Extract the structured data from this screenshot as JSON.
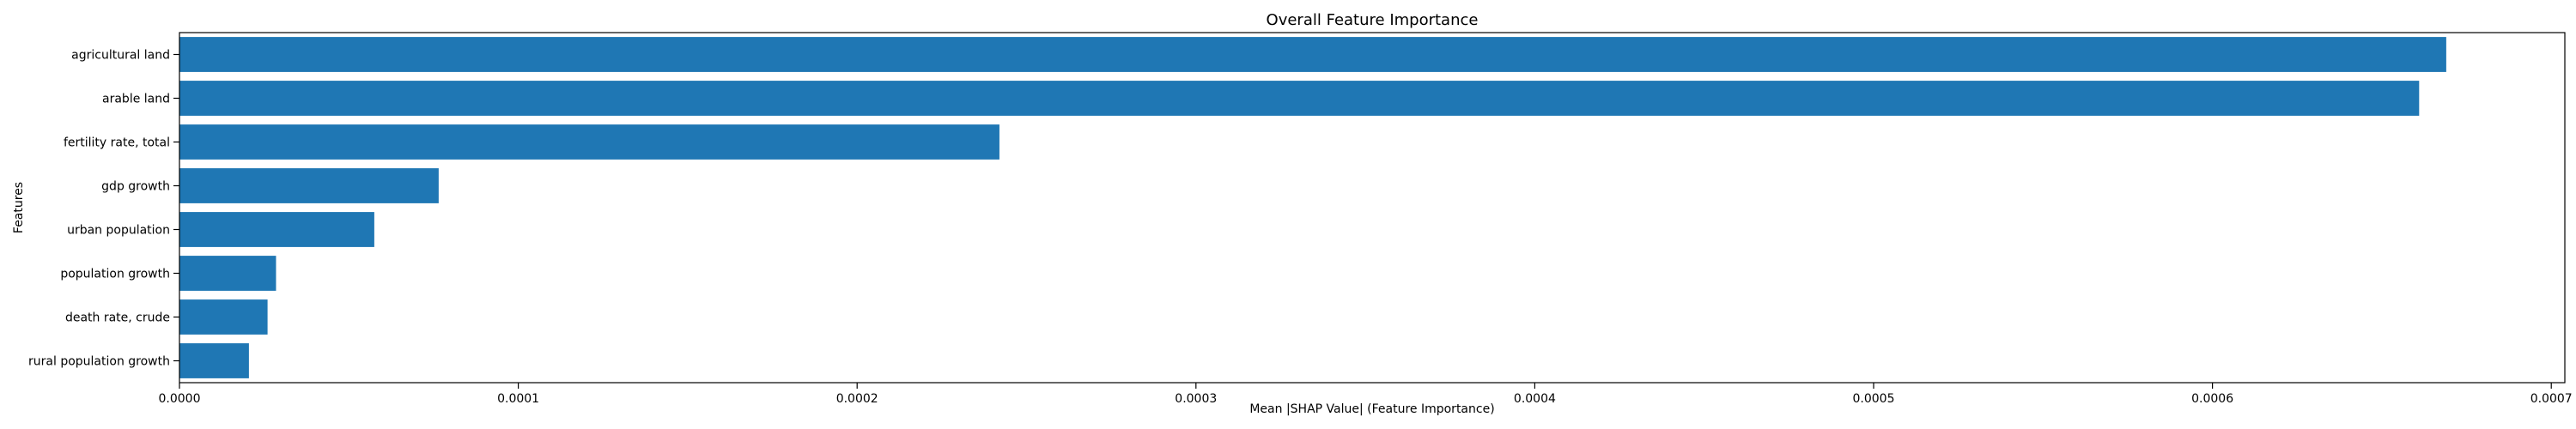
{
  "chart_data": {
    "type": "bar",
    "orientation": "horizontal",
    "title": "Overall Feature Importance",
    "xlabel": "Mean |SHAP Value| (Feature Importance)",
    "ylabel": "Features",
    "categories": [
      "agricultural land",
      "arable land",
      "fertility rate, total",
      "gdp growth",
      "urban population",
      "population growth",
      "death rate, crude",
      "rural population growth"
    ],
    "values": [
      0.000669,
      0.000661,
      0.000242,
      7.65e-05,
      5.75e-05,
      2.85e-05,
      2.6e-05,
      2.05e-05
    ],
    "xlim": [
      0,
      0.000704
    ],
    "xticks": [
      0,
      0.0001,
      0.0002,
      0.0003,
      0.0004,
      0.0005,
      0.0006,
      0.0007
    ],
    "xtick_labels": [
      "0.0000",
      "0.0001",
      "0.0002",
      "0.0003",
      "0.0004",
      "0.0005",
      "0.0006",
      "0.0007"
    ],
    "bar_color": "#1f77b4",
    "grid": false,
    "legend": null
  }
}
